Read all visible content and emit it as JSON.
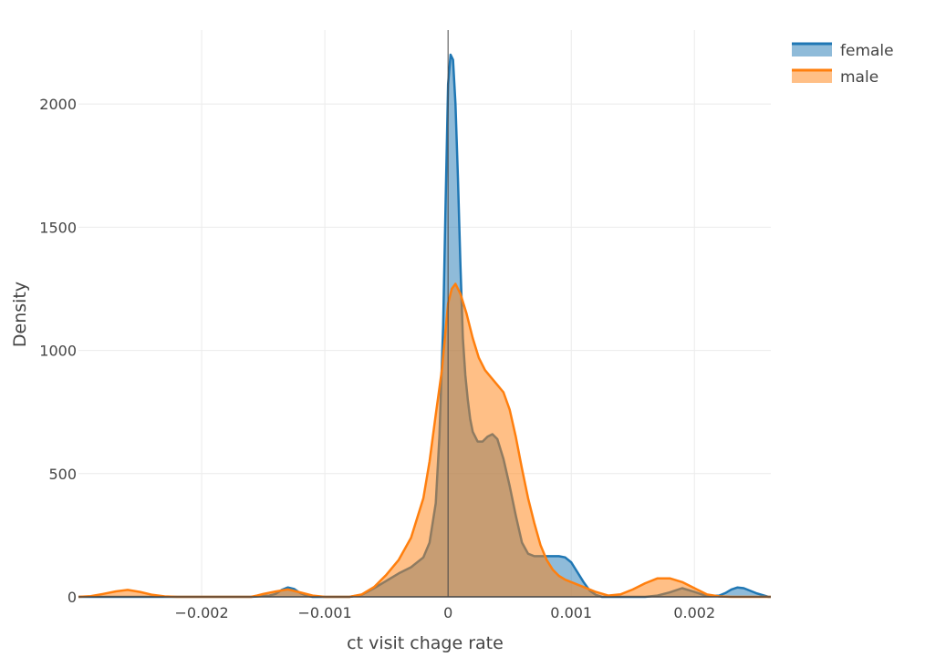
{
  "chart_data": {
    "type": "area",
    "xlabel": "ct visit chage rate",
    "ylabel": "Density",
    "xlim": [
      -0.003,
      0.00262
    ],
    "ylim": [
      0,
      2300
    ],
    "x_ticks": [
      {
        "value": -0.002,
        "label": "−0.002"
      },
      {
        "value": -0.001,
        "label": "−0.001"
      },
      {
        "value": 0,
        "label": "0"
      },
      {
        "value": 0.001,
        "label": "0.001"
      },
      {
        "value": 0.002,
        "label": "0.002"
      }
    ],
    "y_ticks": [
      {
        "value": 0,
        "label": "0"
      },
      {
        "value": 500,
        "label": "500"
      },
      {
        "value": 1000,
        "label": "1000"
      },
      {
        "value": 1500,
        "label": "1500"
      },
      {
        "value": 2000,
        "label": "2000"
      }
    ],
    "grid": true,
    "zero_line_x": 0,
    "legend_position": "top-right",
    "series": [
      {
        "name": "female",
        "color": "#1f77b4",
        "fill": "#1f77b4",
        "points": [
          [
            -0.003,
            0
          ],
          [
            -0.0016,
            0
          ],
          [
            -0.00145,
            5
          ],
          [
            -0.0014,
            12
          ],
          [
            -0.00135,
            28
          ],
          [
            -0.0013,
            38
          ],
          [
            -0.00125,
            32
          ],
          [
            -0.0012,
            15
          ],
          [
            -0.00115,
            5
          ],
          [
            -0.0011,
            0
          ],
          [
            -0.0008,
            0
          ],
          [
            -0.0007,
            8
          ],
          [
            -0.0006,
            35
          ],
          [
            -0.0005,
            65
          ],
          [
            -0.0004,
            95
          ],
          [
            -0.0003,
            120
          ],
          [
            -0.0002,
            160
          ],
          [
            -0.00015,
            220
          ],
          [
            -0.0001,
            380
          ],
          [
            -7e-05,
            650
          ],
          [
            -4e-05,
            1100
          ],
          [
            -2e-05,
            1600
          ],
          [
            0,
            2080
          ],
          [
            2e-05,
            2200
          ],
          [
            4e-05,
            2180
          ],
          [
            6e-05,
            2000
          ],
          [
            8e-05,
            1700
          ],
          [
            0.0001,
            1350
          ],
          [
            0.00012,
            1050
          ],
          [
            0.00014,
            900
          ],
          [
            0.00016,
            800
          ],
          [
            0.00018,
            720
          ],
          [
            0.0002,
            670
          ],
          [
            0.00024,
            630
          ],
          [
            0.00028,
            630
          ],
          [
            0.00032,
            650
          ],
          [
            0.00036,
            660
          ],
          [
            0.0004,
            640
          ],
          [
            0.00045,
            560
          ],
          [
            0.0005,
            450
          ],
          [
            0.00055,
            330
          ],
          [
            0.0006,
            220
          ],
          [
            0.00065,
            175
          ],
          [
            0.0007,
            165
          ],
          [
            0.0008,
            165
          ],
          [
            0.0009,
            165
          ],
          [
            0.00095,
            160
          ],
          [
            0.001,
            140
          ],
          [
            0.00105,
            100
          ],
          [
            0.0011,
            60
          ],
          [
            0.00115,
            25
          ],
          [
            0.0012,
            8
          ],
          [
            0.00125,
            0
          ],
          [
            0.0016,
            0
          ],
          [
            0.0017,
            5
          ],
          [
            0.0018,
            18
          ],
          [
            0.0019,
            35
          ],
          [
            0.002,
            20
          ],
          [
            0.0021,
            3
          ],
          [
            0.0022,
            5
          ],
          [
            0.00225,
            15
          ],
          [
            0.0023,
            30
          ],
          [
            0.00235,
            38
          ],
          [
            0.0024,
            35
          ],
          [
            0.0025,
            15
          ],
          [
            0.0026,
            0
          ],
          [
            0.00262,
            0
          ]
        ]
      },
      {
        "name": "male",
        "color": "#ff7f0e",
        "fill": "#ff7f0e",
        "points": [
          [
            -0.003,
            0
          ],
          [
            -0.0029,
            3
          ],
          [
            -0.0028,
            12
          ],
          [
            -0.0027,
            22
          ],
          [
            -0.0026,
            28
          ],
          [
            -0.0025,
            20
          ],
          [
            -0.0024,
            8
          ],
          [
            -0.0023,
            2
          ],
          [
            -0.0022,
            0
          ],
          [
            -0.0016,
            0
          ],
          [
            -0.00155,
            5
          ],
          [
            -0.0015,
            12
          ],
          [
            -0.0014,
            22
          ],
          [
            -0.0013,
            30
          ],
          [
            -0.0012,
            18
          ],
          [
            -0.0011,
            5
          ],
          [
            -0.001,
            0
          ],
          [
            -0.0008,
            0
          ],
          [
            -0.0007,
            10
          ],
          [
            -0.0006,
            40
          ],
          [
            -0.0005,
            90
          ],
          [
            -0.0004,
            150
          ],
          [
            -0.0003,
            240
          ],
          [
            -0.0002,
            400
          ],
          [
            -0.00015,
            550
          ],
          [
            -0.0001,
            740
          ],
          [
            -5e-05,
            920
          ],
          [
            0,
            1190
          ],
          [
            3e-05,
            1250
          ],
          [
            6e-05,
            1270
          ],
          [
            0.0001,
            1230
          ],
          [
            0.00015,
            1150
          ],
          [
            0.0002,
            1050
          ],
          [
            0.00025,
            970
          ],
          [
            0.0003,
            920
          ],
          [
            0.00035,
            890
          ],
          [
            0.0004,
            860
          ],
          [
            0.00045,
            830
          ],
          [
            0.0005,
            760
          ],
          [
            0.00055,
            650
          ],
          [
            0.0006,
            520
          ],
          [
            0.00065,
            400
          ],
          [
            0.0007,
            300
          ],
          [
            0.00075,
            210
          ],
          [
            0.0008,
            150
          ],
          [
            0.00085,
            110
          ],
          [
            0.0009,
            85
          ],
          [
            0.00095,
            70
          ],
          [
            0.001,
            60
          ],
          [
            0.0011,
            40
          ],
          [
            0.0012,
            20
          ],
          [
            0.0013,
            5
          ],
          [
            0.0014,
            10
          ],
          [
            0.0015,
            30
          ],
          [
            0.0016,
            55
          ],
          [
            0.0017,
            75
          ],
          [
            0.0018,
            75
          ],
          [
            0.0019,
            60
          ],
          [
            0.002,
            35
          ],
          [
            0.0021,
            10
          ],
          [
            0.0022,
            2
          ],
          [
            0.0023,
            0
          ],
          [
            0.00262,
            0
          ]
        ]
      }
    ]
  }
}
